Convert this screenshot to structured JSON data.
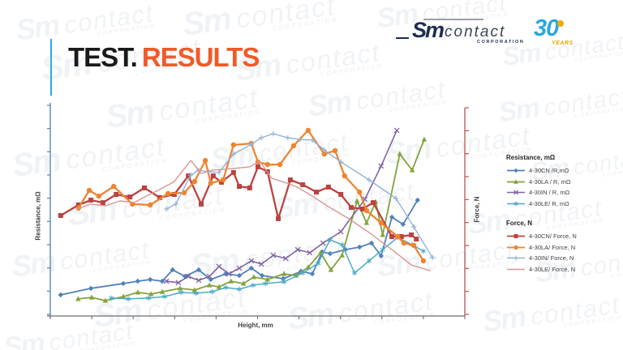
{
  "slide": {
    "title": {
      "prefix": "TEST.",
      "accent": "RESULTS"
    },
    "colors": {
      "title_text": "#1A1A1A",
      "title_accent": "#F05A28",
      "accent_bar": "#29ABE2"
    },
    "logo": {
      "brand_script": "Sm",
      "brand_name": "contact",
      "brand_sub": "CORPORATION",
      "anniversary_number": "30",
      "anniversary_label": "YEARS",
      "colors": {
        "navy": "#1E2D50",
        "blue": "#2BA7DE",
        "yellow": "#F2A900"
      }
    },
    "watermark": {
      "script": "Sm",
      "name": "contact",
      "sub": "CORPORATION"
    }
  },
  "chart_data": {
    "type": "line",
    "title": "",
    "xlabel": "Height, mm",
    "ylabel_left": "Resistance, mΩ",
    "ylabel_right": "Force, N",
    "tick_labels_visible": false,
    "legend_position": "right",
    "point_units": "percent of plot area; x: 0=left 100=right, y: 0=bottom 100=top (no numeric axis tick labels are shown in the chart)",
    "axes": {
      "left": {
        "label": "Resistance, mΩ",
        "color": "#4F81BD",
        "ticks": 10
      },
      "right": {
        "label": "Force, N",
        "color": "#C0504D",
        "ticks": 10
      },
      "bottom": {
        "label": "Height, mm",
        "color": "#6E6E6E",
        "ticks": 11
      }
    },
    "legend_groups": [
      {
        "title": "Resistance, mΩ"
      },
      {
        "title": "Force, N"
      }
    ],
    "series": [
      {
        "name": "4-30CN /R,mΩ",
        "group": "Resistance, mΩ",
        "axis": "left",
        "color": "#4F81BD",
        "marker": "diamond",
        "line_width": 1.8,
        "points": [
          [
            2.5,
            10.0
          ],
          [
            9.8,
            13.1
          ],
          [
            17.6,
            15.4
          ],
          [
            21.1,
            16.5
          ],
          [
            24.1,
            17.3
          ],
          [
            27.0,
            16.5
          ],
          [
            29.5,
            21.9
          ],
          [
            32.5,
            18.8
          ],
          [
            35.8,
            21.9
          ],
          [
            38.7,
            17.3
          ],
          [
            42.3,
            20.0
          ],
          [
            45.6,
            19.2
          ],
          [
            48.5,
            22.7
          ],
          [
            51.1,
            19.2
          ],
          [
            56.2,
            17.7
          ],
          [
            60.5,
            21.2
          ],
          [
            63.2,
            20.0
          ],
          [
            65.6,
            30.4
          ],
          [
            67.5,
            29.6
          ],
          [
            71.2,
            31.5
          ],
          [
            74.6,
            32.7
          ],
          [
            77.5,
            34.6
          ],
          [
            79.8,
            28.5
          ],
          [
            82.4,
            46.9
          ],
          [
            85.1,
            43.5
          ],
          [
            88.6,
            55.0
          ]
        ]
      },
      {
        "name": "4-30LA / R, mΩ",
        "group": "Resistance, mΩ",
        "axis": "left",
        "color": "#84A33D",
        "marker": "triangle",
        "line_width": 1.8,
        "points": [
          [
            6.7,
            8.1
          ],
          [
            10.0,
            8.8
          ],
          [
            13.3,
            7.3
          ],
          [
            17.6,
            9.2
          ],
          [
            21.1,
            11.2
          ],
          [
            24.3,
            10.4
          ],
          [
            27.0,
            11.5
          ],
          [
            31.3,
            13.1
          ],
          [
            34.8,
            12.3
          ],
          [
            38.4,
            14.6
          ],
          [
            40.7,
            13.8
          ],
          [
            43.6,
            16.5
          ],
          [
            46.6,
            15.4
          ],
          [
            49.1,
            18.5
          ],
          [
            52.4,
            17.3
          ],
          [
            56.4,
            20.0
          ],
          [
            59.3,
            19.2
          ],
          [
            62.2,
            23.1
          ],
          [
            65.2,
            30.0
          ],
          [
            67.7,
            21.9
          ],
          [
            70.4,
            28.8
          ],
          [
            74.0,
            54.6
          ],
          [
            76.3,
            44.2
          ],
          [
            78.5,
            54.2
          ],
          [
            80.2,
            38.5
          ],
          [
            84.3,
            76.9
          ],
          [
            87.3,
            69.2
          ],
          [
            90.2,
            83.8
          ]
        ]
      },
      {
        "name": "4-30IN / R, mΩ",
        "group": "Resistance, mΩ",
        "axis": "left",
        "color": "#8064A2",
        "marker": "x",
        "line_width": 1.6,
        "points": [
          [
            28.0,
            16.5
          ],
          [
            30.9,
            15.8
          ],
          [
            33.3,
            18.8
          ],
          [
            35.8,
            16.9
          ],
          [
            38.4,
            18.8
          ],
          [
            40.7,
            23.5
          ],
          [
            43.1,
            20.0
          ],
          [
            45.6,
            22.7
          ],
          [
            48.5,
            26.2
          ],
          [
            50.9,
            24.6
          ],
          [
            53.8,
            28.8
          ],
          [
            56.8,
            27.3
          ],
          [
            59.7,
            31.5
          ],
          [
            62.6,
            30.0
          ],
          [
            65.8,
            34.6
          ],
          [
            70.1,
            40.0
          ],
          [
            75.9,
            55.4
          ],
          [
            79.8,
            71.2
          ],
          [
            83.6,
            88.1
          ]
        ]
      },
      {
        "name": "4-30LE/ R, mΩ",
        "group": "Resistance, mΩ",
        "axis": "left",
        "color": "#4BACC6",
        "marker": "asterisk",
        "line_width": 1.5,
        "points": [
          [
            14.7,
            8.5
          ],
          [
            18.8,
            8.1
          ],
          [
            23.7,
            8.5
          ],
          [
            27.6,
            9.2
          ],
          [
            31.5,
            11.2
          ],
          [
            35.2,
            10.8
          ],
          [
            39.1,
            11.5
          ],
          [
            42.3,
            13.5
          ],
          [
            45.6,
            12.7
          ],
          [
            48.9,
            14.6
          ],
          [
            51.9,
            15.4
          ],
          [
            56.4,
            16.2
          ],
          [
            60.9,
            20.4
          ],
          [
            64.6,
            25.0
          ],
          [
            67.5,
            36.2
          ],
          [
            70.4,
            33.8
          ],
          [
            73.4,
            20.4
          ],
          [
            76.9,
            26.2
          ],
          [
            80.2,
            31.5
          ],
          [
            83.8,
            37.3
          ],
          [
            87.3,
            33.8
          ],
          [
            90.0,
            30.8
          ]
        ]
      },
      {
        "name": "4-30CN/ Force, N",
        "group": "Force, N",
        "axis": "right",
        "color": "#BB4340",
        "marker": "square",
        "line_width": 2.3,
        "points": [
          [
            2.5,
            47.7
          ],
          [
            6.8,
            52.7
          ],
          [
            9.8,
            55.0
          ],
          [
            12.7,
            53.8
          ],
          [
            15.9,
            57.7
          ],
          [
            19.2,
            56.5
          ],
          [
            22.7,
            60.8
          ],
          [
            26.4,
            56.2
          ],
          [
            29.9,
            57.7
          ],
          [
            33.3,
            66.5
          ],
          [
            36.4,
            53.1
          ],
          [
            39.3,
            66.5
          ],
          [
            41.3,
            63.5
          ],
          [
            44.2,
            68.1
          ],
          [
            45.6,
            61.5
          ],
          [
            48.1,
            60.8
          ],
          [
            50.1,
            70.8
          ],
          [
            52.4,
            68.5
          ],
          [
            55.0,
            46.2
          ],
          [
            57.9,
            64.6
          ],
          [
            60.9,
            62.3
          ],
          [
            64.2,
            58.8
          ],
          [
            67.1,
            61.2
          ],
          [
            70.1,
            57.7
          ],
          [
            72.6,
            51.5
          ],
          [
            75.3,
            50.8
          ],
          [
            77.9,
            53.8
          ],
          [
            82.4,
            37.7
          ],
          [
            84.7,
            37.7
          ],
          [
            87.1,
            38.5
          ],
          [
            88.3,
            36.5
          ]
        ]
      },
      {
        "name": "4-30LA/ Force, N",
        "group": "Force, N",
        "axis": "right",
        "color": "#EE8430",
        "marker": "circle",
        "line_width": 2.3,
        "points": [
          [
            6.8,
            51.2
          ],
          [
            9.4,
            59.6
          ],
          [
            11.7,
            56.9
          ],
          [
            15.3,
            61.5
          ],
          [
            19.8,
            53.1
          ],
          [
            24.1,
            52.7
          ],
          [
            28.4,
            58.1
          ],
          [
            32.3,
            58.5
          ],
          [
            34.8,
            63.8
          ],
          [
            37.4,
            73.8
          ],
          [
            38.7,
            63.1
          ],
          [
            41.7,
            64.6
          ],
          [
            44.2,
            81.2
          ],
          [
            48.5,
            81.9
          ],
          [
            50.1,
            73.1
          ],
          [
            52.4,
            71.9
          ],
          [
            55.4,
            71.9
          ],
          [
            58.7,
            80.8
          ],
          [
            62.2,
            88.1
          ],
          [
            66.1,
            76.9
          ],
          [
            68.7,
            78.5
          ],
          [
            71.0,
            66.5
          ],
          [
            74.6,
            58.8
          ],
          [
            76.3,
            50.0
          ],
          [
            79.8,
            44.2
          ],
          [
            83.8,
            37.7
          ],
          [
            85.3,
            34.6
          ],
          [
            87.7,
            33.5
          ],
          [
            90.0,
            26.2
          ]
        ]
      },
      {
        "name": "4-30IN/ Force, N",
        "group": "Force, N",
        "axis": "right",
        "color": "#95B3D7",
        "marker": "plus",
        "line_width": 1.4,
        "points": [
          [
            28.0,
            50.8
          ],
          [
            30.3,
            53.1
          ],
          [
            33.9,
            66.9
          ],
          [
            35.8,
            69.2
          ],
          [
            38.2,
            68.5
          ],
          [
            40.7,
            68.1
          ],
          [
            44.2,
            76.9
          ],
          [
            48.5,
            81.5
          ],
          [
            50.9,
            84.6
          ],
          [
            53.8,
            86.5
          ],
          [
            57.3,
            84.6
          ],
          [
            60.3,
            83.8
          ],
          [
            63.2,
            83.5
          ],
          [
            66.1,
            78.8
          ],
          [
            70.1,
            73.1
          ],
          [
            76.9,
            64.6
          ],
          [
            83.4,
            55.8
          ],
          [
            87.7,
            42.3
          ],
          [
            92.2,
            27.7
          ]
        ]
      },
      {
        "name": "4-30LE/ Force, N",
        "group": "Force, N",
        "axis": "right",
        "color": "#D99694",
        "marker": "none",
        "line_width": 1.4,
        "points": [
          [
            6.5,
            50.8
          ],
          [
            9.8,
            53.1
          ],
          [
            13.3,
            52.3
          ],
          [
            16.8,
            54.6
          ],
          [
            20.2,
            53.8
          ],
          [
            23.1,
            56.9
          ],
          [
            26.0,
            59.6
          ],
          [
            29.9,
            63.8
          ],
          [
            33.9,
            73.8
          ],
          [
            36.4,
            67.7
          ],
          [
            39.1,
            69.2
          ],
          [
            44.2,
            70.0
          ],
          [
            48.1,
            70.8
          ],
          [
            50.5,
            73.5
          ],
          [
            53.4,
            65.4
          ],
          [
            56.4,
            63.5
          ],
          [
            59.3,
            61.5
          ],
          [
            63.2,
            56.9
          ],
          [
            67.1,
            51.9
          ],
          [
            72.0,
            46.2
          ],
          [
            76.9,
            39.6
          ],
          [
            82.4,
            31.5
          ],
          [
            87.1,
            24.2
          ],
          [
            91.6,
            21.5
          ]
        ]
      }
    ]
  }
}
